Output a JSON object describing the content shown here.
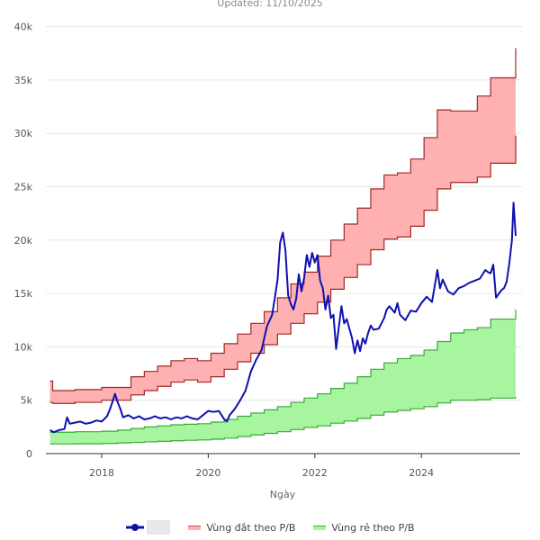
{
  "header": {
    "updated": "Updated: 11/10/2025"
  },
  "colors": {
    "price": "#1010b0",
    "expensive_fill": "#ffb0b0",
    "expensive_line": "#a02828",
    "cheap_fill": "#a8f5a0",
    "cheap_line": "#3aa83a",
    "grid": "#e6e6e6",
    "axis": "#333333"
  },
  "legend": {
    "price_label": "",
    "expensive_label": "Vùng đắt theo P/B",
    "cheap_label": "Vùng rẻ theo P/B"
  },
  "chart_data": {
    "type": "area",
    "title": "",
    "xlabel": "Ngày",
    "ylabel": "",
    "xlim": [
      2016.95,
      2025.95
    ],
    "ylim": [
      0,
      40000
    ],
    "x_ticks": [
      2018,
      2020,
      2022,
      2024
    ],
    "x_tick_labels": [
      "2018",
      "2020",
      "2022",
      "2024"
    ],
    "y_ticks": [
      0,
      5000,
      10000,
      15000,
      20000,
      25000,
      30000,
      35000,
      40000
    ],
    "y_tick_labels": [
      "0",
      "5k",
      "10k",
      "15k",
      "20k",
      "25k",
      "30k",
      "35k",
      "40k"
    ],
    "grid": true,
    "legend_position": "bottom",
    "series": [
      {
        "name": "Vùng đắt theo P/B",
        "kind": "band-step",
        "x": [
          2017.03,
          2017.08,
          2017.5,
          2018.0,
          2018.3,
          2018.55,
          2018.8,
          2019.05,
          2019.3,
          2019.55,
          2019.8,
          2020.05,
          2020.3,
          2020.55,
          2020.8,
          2021.05,
          2021.3,
          2021.55,
          2021.8,
          2022.05,
          2022.3,
          2022.55,
          2022.8,
          2023.05,
          2023.3,
          2023.55,
          2023.8,
          2024.05,
          2024.3,
          2024.55,
          2024.8,
          2025.05,
          2025.3,
          2025.77
        ],
        "upper": [
          6800,
          5900,
          6000,
          6200,
          6200,
          7200,
          7700,
          8200,
          8700,
          8900,
          8700,
          9400,
          10300,
          11200,
          12200,
          13300,
          14600,
          15900,
          17000,
          18500,
          20000,
          21500,
          23000,
          24800,
          26100,
          26300,
          27600,
          29600,
          32200,
          32100,
          32100,
          33500,
          35200,
          38000
        ],
        "lower": [
          4800,
          4700,
          4800,
          5000,
          5000,
          5500,
          5900,
          6300,
          6700,
          6900,
          6700,
          7200,
          7900,
          8600,
          9400,
          10200,
          11200,
          12200,
          13100,
          14200,
          15400,
          16500,
          17700,
          19100,
          20100,
          20300,
          21300,
          22800,
          24800,
          25400,
          25400,
          25900,
          27200,
          29800
        ]
      },
      {
        "name": "Vùng rẻ theo P/B",
        "kind": "band-step",
        "x": [
          2017.03,
          2017.5,
          2018.0,
          2018.3,
          2018.55,
          2018.8,
          2019.05,
          2019.3,
          2019.55,
          2019.8,
          2020.05,
          2020.3,
          2020.55,
          2020.8,
          2021.05,
          2021.3,
          2021.55,
          2021.8,
          2022.05,
          2022.3,
          2022.55,
          2022.8,
          2023.05,
          2023.3,
          2023.55,
          2023.8,
          2024.05,
          2024.3,
          2024.55,
          2024.8,
          2025.05,
          2025.3,
          2025.77
        ],
        "upper": [
          2000,
          2050,
          2100,
          2200,
          2350,
          2500,
          2600,
          2700,
          2750,
          2800,
          2950,
          3200,
          3500,
          3800,
          4100,
          4400,
          4800,
          5200,
          5600,
          6100,
          6600,
          7200,
          7900,
          8500,
          8900,
          9200,
          9700,
          10500,
          11300,
          11600,
          11800,
          12600,
          13500
        ],
        "lower": [
          900,
          920,
          950,
          1000,
          1050,
          1100,
          1150,
          1200,
          1250,
          1280,
          1350,
          1450,
          1600,
          1750,
          1900,
          2050,
          2250,
          2450,
          2600,
          2850,
          3050,
          3300,
          3600,
          3900,
          4050,
          4200,
          4400,
          4750,
          5000,
          5000,
          5050,
          5200,
          5300
        ]
      },
      {
        "name": "",
        "kind": "line",
        "x": [
          2017.03,
          2017.1,
          2017.2,
          2017.3,
          2017.35,
          2017.4,
          2017.5,
          2017.6,
          2017.7,
          2017.8,
          2017.9,
          2018.0,
          2018.1,
          2018.15,
          2018.2,
          2018.25,
          2018.3,
          2018.35,
          2018.4,
          2018.5,
          2018.6,
          2018.7,
          2018.8,
          2018.9,
          2019.0,
          2019.1,
          2019.2,
          2019.3,
          2019.4,
          2019.5,
          2019.6,
          2019.7,
          2019.8,
          2019.9,
          2020.0,
          2020.1,
          2020.2,
          2020.25,
          2020.3,
          2020.35,
          2020.4,
          2020.5,
          2020.6,
          2020.7,
          2020.8,
          2020.9,
          2021.0,
          2021.05,
          2021.1,
          2021.2,
          2021.25,
          2021.3,
          2021.35,
          2021.4,
          2021.45,
          2021.5,
          2021.55,
          2021.6,
          2021.65,
          2021.7,
          2021.75,
          2021.8,
          2021.85,
          2021.9,
          2021.95,
          2022.0,
          2022.05,
          2022.1,
          2022.15,
          2022.2,
          2022.25,
          2022.3,
          2022.35,
          2022.4,
          2022.45,
          2022.5,
          2022.55,
          2022.6,
          2022.7,
          2022.75,
          2022.8,
          2022.85,
          2022.9,
          2022.95,
          2023.0,
          2023.05,
          2023.1,
          2023.2,
          2023.3,
          2023.35,
          2023.4,
          2023.5,
          2023.55,
          2023.6,
          2023.7,
          2023.8,
          2023.9,
          2024.0,
          2024.1,
          2024.2,
          2024.3,
          2024.35,
          2024.4,
          2024.5,
          2024.6,
          2024.7,
          2024.8,
          2024.9,
          2025.0,
          2025.1,
          2025.2,
          2025.25,
          2025.3,
          2025.35,
          2025.4,
          2025.5,
          2025.55,
          2025.6,
          2025.65,
          2025.7,
          2025.73,
          2025.77
        ],
        "y": [
          2200,
          2000,
          2200,
          2300,
          3400,
          2800,
          2900,
          3000,
          2800,
          2900,
          3100,
          3000,
          3500,
          4100,
          4800,
          5600,
          4800,
          4200,
          3400,
          3600,
          3300,
          3500,
          3200,
          3300,
          3500,
          3300,
          3400,
          3200,
          3400,
          3300,
          3500,
          3300,
          3200,
          3600,
          4000,
          3900,
          4000,
          3600,
          3200,
          3000,
          3600,
          4200,
          5000,
          5900,
          7700,
          8800,
          9700,
          10800,
          11900,
          13000,
          14600,
          16300,
          19800,
          20700,
          19000,
          14800,
          14000,
          13500,
          14500,
          16800,
          15200,
          16500,
          18600,
          17500,
          18800,
          17900,
          18600,
          16200,
          15500,
          13500,
          14800,
          12700,
          13000,
          9800,
          11800,
          13800,
          12200,
          12600,
          10800,
          9400,
          10600,
          9600,
          10800,
          10300,
          11300,
          12000,
          11600,
          11700,
          12700,
          13500,
          13800,
          13200,
          14100,
          13000,
          12500,
          13400,
          13300,
          14100,
          14700,
          14200,
          17200,
          15500,
          16300,
          15200,
          14900,
          15500,
          15700,
          16000,
          16200,
          16400,
          17200,
          17000,
          16900,
          17700,
          14600,
          15300,
          15500,
          16100,
          17800,
          20000,
          23500,
          20400
        ],
        "marker_last": true
      }
    ]
  }
}
